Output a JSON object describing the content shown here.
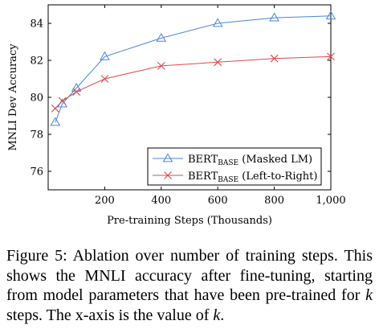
{
  "chart_data": {
    "type": "line",
    "xlabel": "Pre-training Steps (Thousands)",
    "ylabel": "MNLI Dev Accuracy",
    "xlim": [
      0,
      1000
    ],
    "ylim": [
      75,
      85
    ],
    "x_ticks": [
      "200",
      "400",
      "600",
      "800",
      "1,000"
    ],
    "y_ticks": [
      "76",
      "78",
      "80",
      "82",
      "84"
    ],
    "grid": false,
    "legend_position": "bottom-right",
    "series": [
      {
        "name_main": "BERT",
        "name_sub": "BASE",
        "name_suffix": " (Masked LM)",
        "color": "#4a86d8",
        "marker": "triangle",
        "x": [
          25,
          50,
          100,
          200,
          400,
          600,
          800,
          1000
        ],
        "y": [
          78.65,
          79.65,
          80.5,
          82.2,
          83.2,
          84.0,
          84.3,
          84.4
        ]
      },
      {
        "name_main": "BERT",
        "name_sub": "BASE",
        "name_suffix": " (Left-to-Right)",
        "color": "#e04848",
        "marker": "cross",
        "x": [
          25,
          50,
          100,
          200,
          400,
          600,
          800,
          1000
        ],
        "y": [
          79.4,
          79.8,
          80.3,
          81.0,
          81.7,
          81.9,
          82.1,
          82.2
        ]
      }
    ]
  },
  "caption": {
    "prefix": "Figure 5: Ablation over number of training steps. This shows the MNLI accuracy after fine-tuning, starting from model parameters that have been pre-trained for ",
    "k1": "k",
    "middle": " steps. The x-axis is the value of ",
    "k2": "k",
    "suffix": "."
  }
}
